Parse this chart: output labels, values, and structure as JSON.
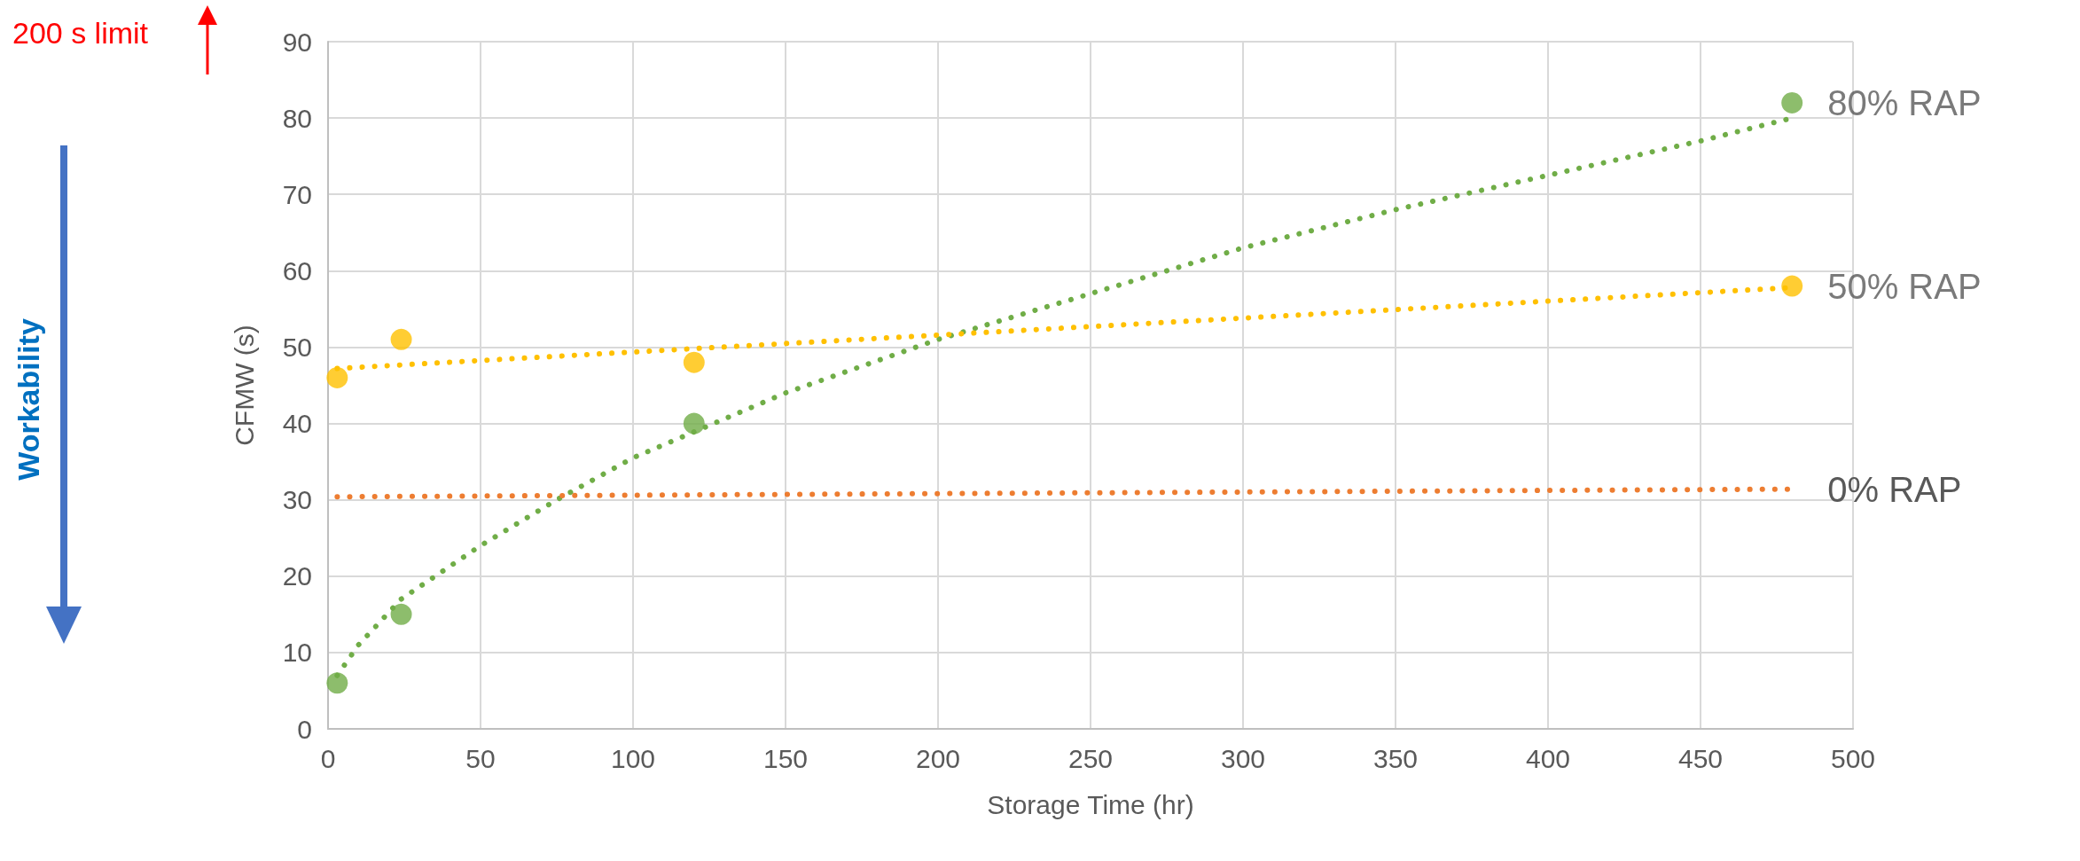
{
  "chart_data": {
    "type": "scatter",
    "xlabel": "Storage Time (hr)",
    "ylabel": "CFMW (s)",
    "xlim": [
      0,
      500
    ],
    "xticks": [
      0,
      50,
      100,
      150,
      200,
      250,
      300,
      350,
      400,
      450,
      500
    ],
    "ylim": [
      0,
      90
    ],
    "yticks": [
      0,
      10,
      20,
      30,
      40,
      50,
      60,
      70,
      80,
      90
    ],
    "grid": true,
    "annotations": [
      "200 s limit",
      "Workability"
    ],
    "series": [
      {
        "name": "80% RAP",
        "marker": "circle",
        "color": "#70ad47",
        "x": [
          3,
          24,
          120,
          480
        ],
        "values": [
          6,
          15,
          40,
          82
        ]
      },
      {
        "name": "50% RAP",
        "marker": "circle",
        "color": "#ffc000",
        "x": [
          3,
          24,
          120,
          480
        ],
        "values": [
          46,
          51,
          48,
          58
        ]
      },
      {
        "type": "line",
        "marker": "none",
        "line_style": "dotted",
        "color": "#70ad47",
        "x": [
          3,
          10,
          24,
          50,
          75,
          100,
          150,
          200,
          250,
          300,
          350,
          400,
          450,
          480
        ],
        "values": [
          7,
          11,
          17,
          24,
          30,
          35.5,
          44,
          51,
          57,
          63,
          68,
          72.5,
          77,
          80
        ]
      },
      {
        "type": "line",
        "marker": "none",
        "line_style": "dotted",
        "color": "#ffc000",
        "x": [
          3,
          480
        ],
        "values": [
          47.2,
          57.8
        ]
      },
      {
        "name": "0% RAP",
        "type": "line",
        "marker": "none",
        "line_style": "dotted",
        "color": "#ed7d31",
        "x": [
          3,
          480
        ],
        "values": [
          30.4,
          31.4
        ]
      }
    ]
  }
}
